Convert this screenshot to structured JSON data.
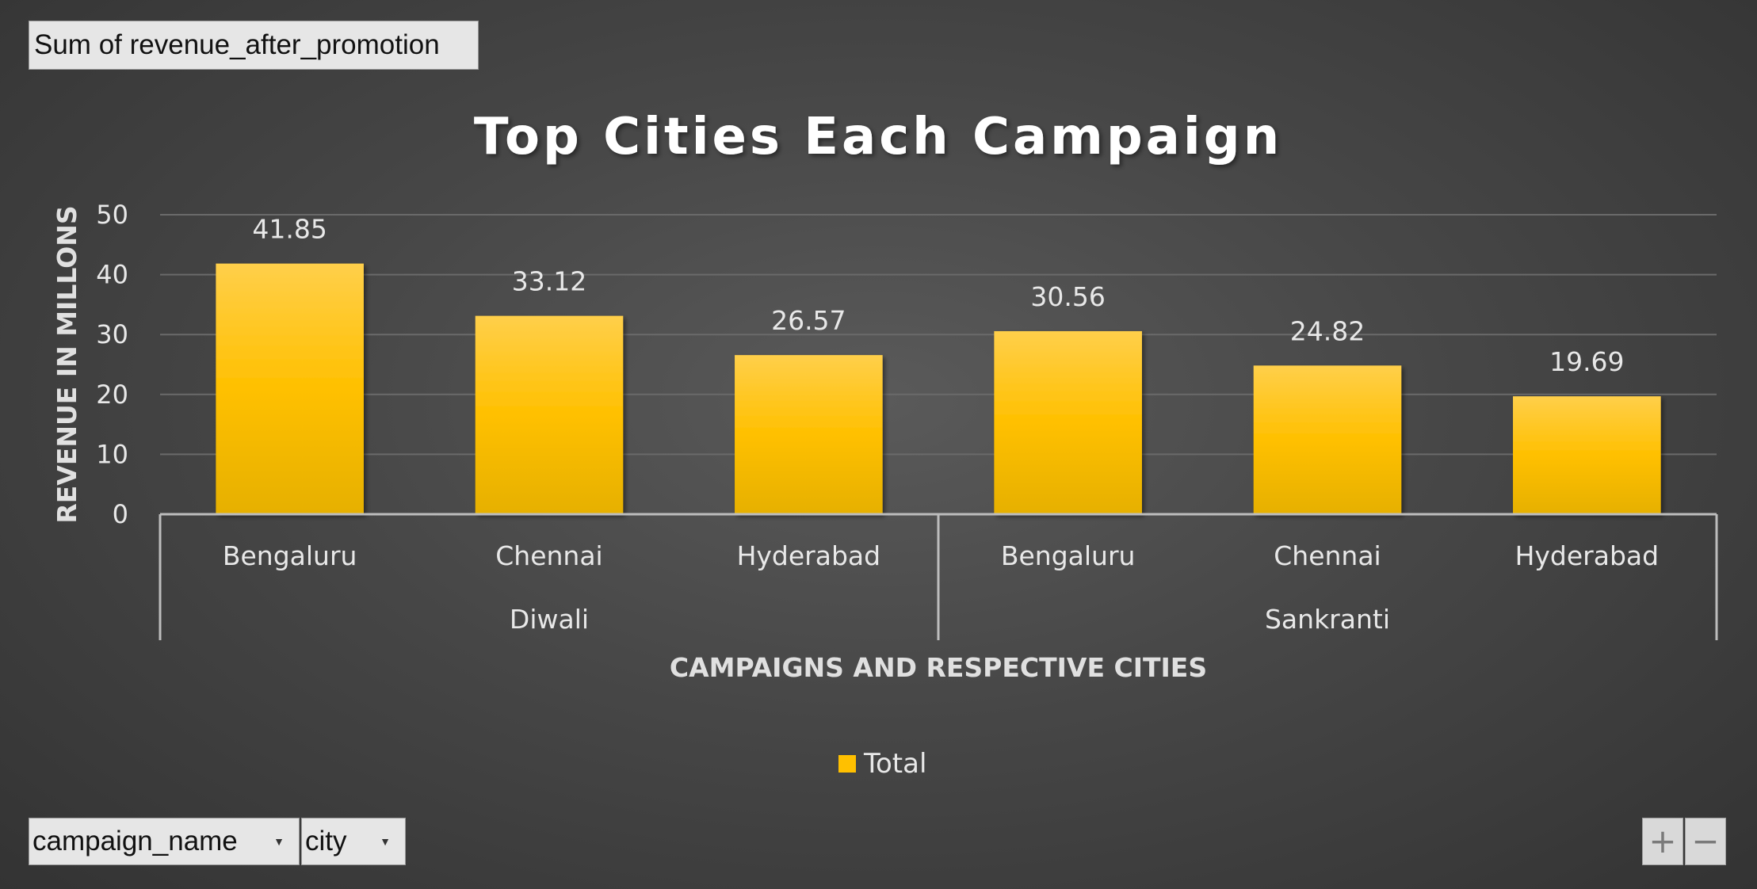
{
  "pivot": {
    "value_field": "Sum of revenue_after_promotion",
    "row_fields": [
      "campaign_name",
      "city"
    ]
  },
  "zoom": {
    "in_label": "+",
    "out_label": "−"
  },
  "colors": {
    "bar": "#ffc000",
    "bar_top": "#ffcf4a",
    "bar_bottom": "#e6b000",
    "grid": "#6a6a6a",
    "axis": "#bdbdbd"
  },
  "chart_data": {
    "type": "bar",
    "title": "Top Cities Each Campaign",
    "xlabel": "CAMPAIGNS AND RESPECTIVE CITIES",
    "ylabel": "REVENUE IN MILLONS",
    "ylim": [
      0,
      50
    ],
    "yticks": [
      0,
      10,
      20,
      30,
      40,
      50
    ],
    "grid": true,
    "legend_position": "bottom",
    "groups": [
      {
        "name": "Diwali",
        "categories": [
          "Bengaluru",
          "Chennai",
          "Hyderabad"
        ]
      },
      {
        "name": "Sankranti",
        "categories": [
          "Bengaluru",
          "Chennai",
          "Hyderabad"
        ]
      }
    ],
    "series": [
      {
        "name": "Total",
        "values": [
          41.85,
          33.12,
          26.57,
          30.56,
          24.82,
          19.69
        ]
      }
    ]
  }
}
